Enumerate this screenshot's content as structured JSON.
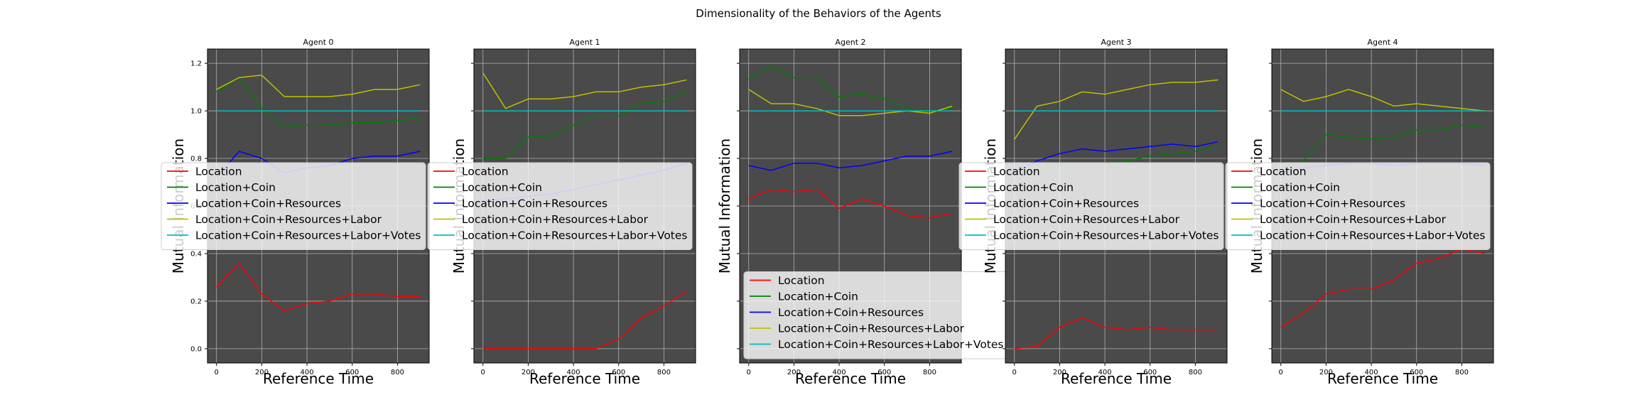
{
  "figure": {
    "suptitle": "Dimensionality of the Behaviors of the Agents"
  },
  "series_styles": [
    {
      "name": "Location",
      "color": "#ff0000"
    },
    {
      "name": "Location+Coin",
      "color": "#008000"
    },
    {
      "name": "Location+Coin+Resources",
      "color": "#0000ff"
    },
    {
      "name": "Location+Coin+Resources+Labor",
      "color": "#bfbf00"
    },
    {
      "name": "Location+Coin+Resources+Labor+Votes",
      "color": "#00bfbf"
    }
  ],
  "axes_background": "#4a4a4a",
  "grid": true,
  "chart_data": [
    {
      "type": "line",
      "title": "Agent 0",
      "xlabel": "Reference Time",
      "ylabel": "Mutual Information",
      "xlim": [
        -40,
        940
      ],
      "ylim": [
        -0.06,
        1.26
      ],
      "xticks": [
        0,
        200,
        400,
        600,
        800
      ],
      "yticks": [
        0.0,
        0.2,
        0.4,
        0.6,
        0.8,
        1.0,
        1.2
      ],
      "ytick_labels_visible": true,
      "legend_position": "center-left",
      "x": [
        0,
        100,
        200,
        300,
        400,
        500,
        600,
        700,
        800,
        900
      ],
      "series": [
        {
          "name": "Location",
          "values": [
            0.26,
            0.36,
            0.23,
            0.16,
            0.19,
            0.2,
            0.23,
            0.23,
            0.22,
            0.22
          ]
        },
        {
          "name": "Location+Coin",
          "values": [
            1.08,
            1.14,
            1.01,
            0.93,
            0.94,
            0.94,
            0.95,
            0.95,
            0.96,
            0.97
          ]
        },
        {
          "name": "Location+Coin+Resources",
          "values": [
            0.72,
            0.83,
            0.8,
            0.74,
            0.76,
            0.77,
            0.8,
            0.81,
            0.81,
            0.83
          ]
        },
        {
          "name": "Location+Coin+Resources+Labor",
          "values": [
            1.09,
            1.14,
            1.15,
            1.06,
            1.06,
            1.06,
            1.07,
            1.09,
            1.09,
            1.11
          ]
        },
        {
          "name": "Location+Coin+Resources+Labor+Votes",
          "values": [
            1.0,
            1.0,
            1.0,
            1.0,
            1.0,
            1.0,
            1.0,
            1.0,
            1.0,
            1.0
          ]
        }
      ]
    },
    {
      "type": "line",
      "title": "Agent 1",
      "xlabel": "Reference Time",
      "ylabel": "Mutual Information",
      "xlim": [
        -40,
        940
      ],
      "ylim": [
        -0.06,
        1.26
      ],
      "xticks": [
        0,
        200,
        400,
        600,
        800
      ],
      "yticks": [
        0.0,
        0.2,
        0.4,
        0.6,
        0.8,
        1.0,
        1.2
      ],
      "ytick_labels_visible": false,
      "legend_position": "center-left",
      "x": [
        0,
        100,
        200,
        300,
        400,
        500,
        600,
        700,
        800,
        900
      ],
      "series": [
        {
          "name": "Location",
          "values": [
            0.0,
            0.0,
            0.0,
            0.0,
            0.0,
            0.0,
            0.04,
            0.13,
            0.18,
            0.24
          ]
        },
        {
          "name": "Location+Coin",
          "values": [
            0.8,
            0.8,
            0.89,
            0.89,
            0.94,
            0.98,
            0.98,
            1.03,
            1.04,
            1.08
          ]
        },
        {
          "name": "Location+Coin+Resources",
          "values": [
            0.62,
            0.63,
            0.64,
            0.65,
            0.67,
            0.69,
            0.71,
            0.73,
            0.75,
            0.78
          ]
        },
        {
          "name": "Location+Coin+Resources+Labor",
          "values": [
            1.16,
            1.01,
            1.05,
            1.05,
            1.06,
            1.08,
            1.08,
            1.1,
            1.11,
            1.13
          ]
        },
        {
          "name": "Location+Coin+Resources+Labor+Votes",
          "values": [
            1.0,
            1.0,
            1.0,
            1.0,
            1.0,
            1.0,
            1.0,
            1.0,
            1.0,
            1.0
          ]
        }
      ]
    },
    {
      "type": "line",
      "title": "Agent 2",
      "xlabel": "Reference Time",
      "ylabel": "Mutual Information",
      "xlim": [
        -40,
        940
      ],
      "ylim": [
        -0.06,
        1.26
      ],
      "xticks": [
        0,
        200,
        400,
        600,
        800
      ],
      "yticks": [
        0.0,
        0.2,
        0.4,
        0.6,
        0.8,
        1.0,
        1.2
      ],
      "ytick_labels_visible": false,
      "legend_position": "lower-left",
      "x": [
        0,
        100,
        200,
        300,
        400,
        500,
        600,
        700,
        800,
        900
      ],
      "series": [
        {
          "name": "Location",
          "values": [
            0.63,
            0.67,
            0.66,
            0.67,
            0.59,
            0.63,
            0.6,
            0.56,
            0.55,
            0.57
          ]
        },
        {
          "name": "Location+Coin",
          "values": [
            1.13,
            1.19,
            1.14,
            1.14,
            1.06,
            1.07,
            1.05,
            1.01,
            1.0,
            1.01
          ]
        },
        {
          "name": "Location+Coin+Resources",
          "values": [
            0.77,
            0.75,
            0.78,
            0.78,
            0.76,
            0.77,
            0.79,
            0.81,
            0.81,
            0.83
          ]
        },
        {
          "name": "Location+Coin+Resources+Labor",
          "values": [
            1.09,
            1.03,
            1.03,
            1.01,
            0.98,
            0.98,
            0.99,
            1.0,
            0.99,
            1.02
          ]
        },
        {
          "name": "Location+Coin+Resources+Labor+Votes",
          "values": [
            1.0,
            1.0,
            1.0,
            1.0,
            1.0,
            1.0,
            1.0,
            1.0,
            1.0,
            1.0
          ]
        }
      ]
    },
    {
      "type": "line",
      "title": "Agent 3",
      "xlabel": "Reference Time",
      "ylabel": "Mutual Information",
      "xlim": [
        -40,
        940
      ],
      "ylim": [
        -0.06,
        1.26
      ],
      "xticks": [
        0,
        200,
        400,
        600,
        800
      ],
      "yticks": [
        0.0,
        0.2,
        0.4,
        0.6,
        0.8,
        1.0,
        1.2
      ],
      "ytick_labels_visible": false,
      "legend_position": "center-left",
      "x": [
        0,
        100,
        200,
        300,
        400,
        500,
        600,
        700,
        800,
        900
      ],
      "series": [
        {
          "name": "Location",
          "values": [
            0.0,
            0.01,
            0.09,
            0.13,
            0.09,
            0.08,
            0.09,
            0.08,
            0.08,
            0.08
          ]
        },
        {
          "name": "Location+Coin",
          "values": [
            0.74,
            0.76,
            0.77,
            0.78,
            0.78,
            0.79,
            0.81,
            0.82,
            0.83,
            0.85
          ]
        },
        {
          "name": "Location+Coin+Resources",
          "values": [
            0.74,
            0.79,
            0.82,
            0.84,
            0.83,
            0.84,
            0.85,
            0.86,
            0.85,
            0.87
          ]
        },
        {
          "name": "Location+Coin+Resources+Labor",
          "values": [
            0.88,
            1.02,
            1.04,
            1.08,
            1.07,
            1.09,
            1.11,
            1.12,
            1.12,
            1.13
          ]
        },
        {
          "name": "Location+Coin+Resources+Labor+Votes",
          "values": [
            1.0,
            1.0,
            1.0,
            1.0,
            1.0,
            1.0,
            1.0,
            1.0,
            1.0,
            1.0
          ]
        }
      ]
    },
    {
      "type": "line",
      "title": "Agent 4",
      "xlabel": "Reference Time",
      "ylabel": "Mutual Information",
      "xlim": [
        -40,
        940
      ],
      "ylim": [
        -0.06,
        1.26
      ],
      "xticks": [
        0,
        200,
        400,
        600,
        800
      ],
      "yticks": [
        0.0,
        0.2,
        0.4,
        0.6,
        0.8,
        1.0,
        1.2
      ],
      "ytick_labels_visible": false,
      "legend_position": "center-left",
      "x": [
        0,
        100,
        200,
        300,
        400,
        500,
        600,
        700,
        800,
        900
      ],
      "series": [
        {
          "name": "Location",
          "values": [
            0.09,
            0.15,
            0.23,
            0.25,
            0.25,
            0.29,
            0.36,
            0.38,
            0.42,
            0.4
          ]
        },
        {
          "name": "Location+Coin",
          "values": [
            0.76,
            0.79,
            0.9,
            0.89,
            0.88,
            0.89,
            0.92,
            0.92,
            0.94,
            0.93
          ]
        },
        {
          "name": "Location+Coin+Resources",
          "values": [
            0.74,
            0.76,
            0.77,
            0.78,
            0.78,
            0.77,
            0.78,
            0.78,
            0.78,
            0.77
          ]
        },
        {
          "name": "Location+Coin+Resources+Labor",
          "values": [
            1.09,
            1.04,
            1.06,
            1.09,
            1.06,
            1.02,
            1.03,
            1.02,
            1.01,
            1.0
          ]
        },
        {
          "name": "Location+Coin+Resources+Labor+Votes",
          "values": [
            1.0,
            1.0,
            1.0,
            1.0,
            1.0,
            1.0,
            1.0,
            1.0,
            1.0,
            1.0
          ]
        }
      ]
    }
  ]
}
